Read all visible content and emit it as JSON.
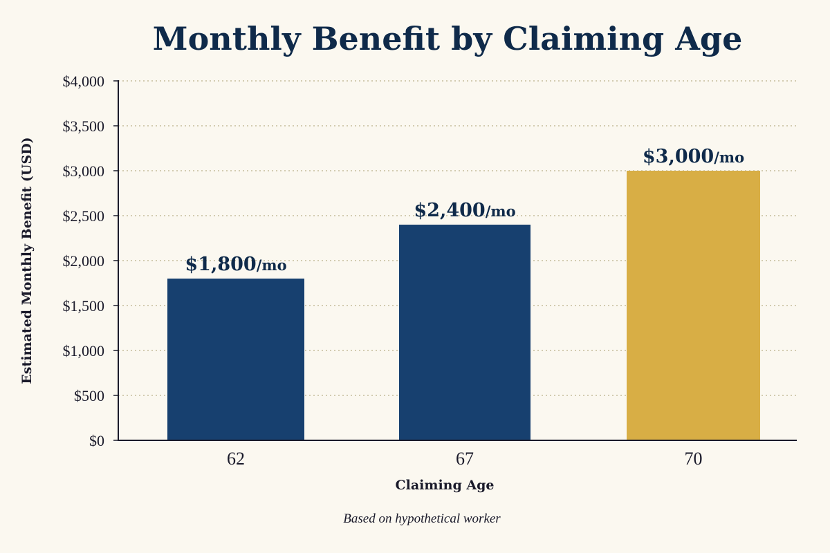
{
  "chart_data": {
    "type": "bar",
    "title": "Monthly Benefit by Claiming Age",
    "xlabel": "Claiming Age",
    "ylabel": "Estimated Monthly Benefit (USD)",
    "categories": [
      "62",
      "67",
      "70"
    ],
    "values": [
      1800,
      2400,
      3000
    ],
    "data_labels": [
      "$1,800",
      "$2,400",
      "$3,000"
    ],
    "data_label_unit": "/mo",
    "ylim": [
      0,
      4000
    ],
    "yticks": [
      0,
      500,
      1000,
      1500,
      2000,
      2500,
      3000,
      3500,
      4000
    ],
    "ytick_labels": [
      "$0",
      "$500",
      "$1,000",
      "$1,500",
      "$2,000",
      "$2,500",
      "$3,000",
      "$3,500",
      "$4,000"
    ],
    "bar_colors": [
      "#17406f",
      "#17406f",
      "#d8ae45"
    ],
    "grid": true,
    "footnote": "Based on hypothetical worker"
  },
  "colors": {
    "background": "#fbf8f0",
    "title": "#0f2a4a",
    "primary_bar": "#17406f",
    "highlight_bar": "#d8ae45"
  }
}
